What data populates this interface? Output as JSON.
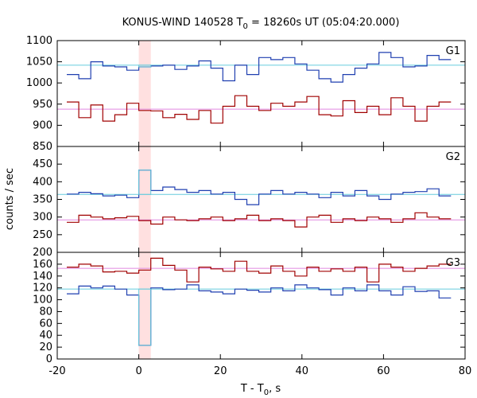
{
  "chart_data": {
    "type": "line",
    "title": {
      "prefix": "KONUS-WIND 140528 T",
      "subscript": "0",
      "suffix": " = 18260s UT (05:04:20.000)"
    },
    "xlabel": {
      "prefix": "T - T",
      "subscript": "0",
      "suffix": ", s"
    },
    "ylabel": "counts / sec",
    "xlim": [
      -20,
      80
    ],
    "xticks": [
      -20,
      0,
      20,
      40,
      60,
      80
    ],
    "highlight_x": [
      0,
      2.944
    ],
    "highlight_color": "#ffe0e0",
    "colors": {
      "blue": "#1f3fb0",
      "red": "#a00000",
      "cyan": "#66ccdd",
      "pink": "#e088e0"
    },
    "bins": [
      -17.664,
      -14.72,
      -11.776,
      -8.832,
      -5.888,
      -2.944,
      0,
      2.944,
      5.888,
      8.832,
      11.776,
      14.72,
      17.664,
      20.608,
      23.552,
      26.496,
      29.44,
      32.384,
      35.328,
      38.272,
      41.216,
      44.16,
      47.104,
      50.048,
      52.992,
      55.936,
      58.88,
      61.824,
      64.768,
      67.712,
      70.656,
      73.6,
      76.544,
      79.488
    ],
    "panels": [
      {
        "label": "G1",
        "ylim": [
          850,
          1100
        ],
        "yticks": [
          850,
          900,
          950,
          1000,
          1050,
          1100
        ],
        "series": [
          {
            "color": "blue",
            "bg_level": 1042,
            "values": [
              1020,
              1010,
              1050,
              1040,
              1038,
              1030,
              1038,
              1040,
              1042,
              1032,
              1040,
              1052,
              1035,
              1005,
              1042,
              1020,
              1060,
              1055,
              1060,
              1045,
              1030,
              1010,
              1002,
              1020,
              1035,
              1045,
              1072,
              1060,
              1038,
              1040,
              1065,
              1055
            ]
          },
          {
            "color": "red",
            "bg_level": 938,
            "values": [
              955,
              918,
              948,
              910,
              925,
              952,
              935,
              934,
              918,
              926,
              914,
              935,
              905,
              945,
              970,
              945,
              935,
              952,
              945,
              955,
              968,
              925,
              922,
              958,
              930,
              945,
              925,
              965,
              945,
              910,
              945,
              955
            ]
          }
        ]
      },
      {
        "label": "G2",
        "ylim": [
          200,
          500
        ],
        "yticks": [
          200,
          250,
          300,
          350,
          400,
          450
        ],
        "series": [
          {
            "color": "blue",
            "bg_level": 364,
            "values": [
              365,
              370,
              366,
              360,
              362,
              355,
              433,
              375,
              385,
              378,
              370,
              375,
              365,
              370,
              350,
              335,
              365,
              375,
              365,
              370,
              365,
              355,
              370,
              360,
              375,
              360,
              350,
              365,
              370,
              372,
              380,
              360
            ]
          },
          {
            "color": "red",
            "bg_level": 292,
            "values": [
              285,
              305,
              300,
              295,
              298,
              302,
              290,
              280,
              300,
              292,
              290,
              295,
              300,
              290,
              295,
              305,
              290,
              295,
              290,
              272,
              300,
              305,
              285,
              295,
              290,
              300,
              295,
              285,
              295,
              312,
              300,
              295
            ]
          }
        ]
      },
      {
        "label": "G3",
        "ylim": [
          0,
          180
        ],
        "yticks": [
          0,
          20,
          40,
          60,
          80,
          100,
          120,
          140,
          160
        ],
        "series": [
          {
            "color": "blue",
            "bg_level": 118,
            "values": [
              110,
              123,
              120,
              123,
              118,
              108,
              23,
              120,
              117,
              118,
              125,
              115,
              113,
              110,
              118,
              116,
              113,
              120,
              115,
              125,
              120,
              117,
              108,
              120,
              115,
              125,
              115,
              108,
              122,
              114,
              115,
              103
            ]
          },
          {
            "color": "red",
            "bg_level": 153,
            "values": [
              155,
              160,
              157,
              147,
              148,
              145,
              150,
              170,
              158,
              150,
              130,
              155,
              152,
              148,
              165,
              148,
              145,
              157,
              148,
              140,
              155,
              148,
              152,
              148,
              155,
              130,
              160,
              155,
              148,
              153,
              157,
              160
            ]
          }
        ]
      }
    ]
  }
}
